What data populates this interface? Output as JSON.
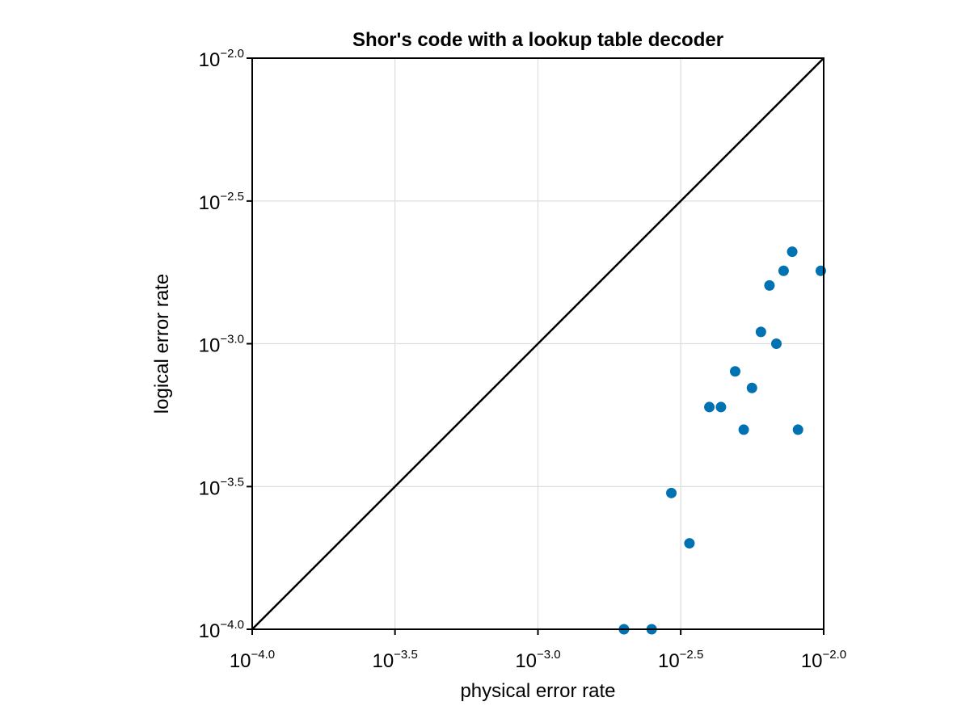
{
  "chart_data": {
    "type": "scatter",
    "title": "Shor's code with a lookup table decoder",
    "xlabel": "physical error rate",
    "ylabel": "logical error rate",
    "xscale": "log10",
    "yscale": "log10",
    "xlim": [
      0.0001,
      0.01
    ],
    "ylim": [
      0.0001,
      0.01
    ],
    "grid": true,
    "legend": "none",
    "tick_base": "10",
    "xticks": [
      {
        "value": 0.0001,
        "exponent": "−4.0"
      },
      {
        "value": 0.000316,
        "exponent": "−3.5"
      },
      {
        "value": 0.001,
        "exponent": "−3.0"
      },
      {
        "value": 0.00316,
        "exponent": "−2.5"
      },
      {
        "value": 0.01,
        "exponent": "−2.0"
      }
    ],
    "yticks": [
      {
        "value": 0.0001,
        "exponent": "−4.0"
      },
      {
        "value": 0.000316,
        "exponent": "−3.5"
      },
      {
        "value": 0.001,
        "exponent": "−3.0"
      },
      {
        "value": 0.00316,
        "exponent": "−2.5"
      },
      {
        "value": 0.01,
        "exponent": "−2.0"
      }
    ],
    "reference_line": {
      "x": [
        0.0001,
        0.01
      ],
      "y": [
        0.0001,
        0.01
      ],
      "color": "#000000"
    },
    "series": [
      {
        "color": "#0072b2",
        "points": [
          {
            "x": 0.002,
            "y": 0.0001
          },
          {
            "x": 0.0025,
            "y": 0.0001
          },
          {
            "x": 0.00293,
            "y": 0.0003
          },
          {
            "x": 0.00339,
            "y": 0.0002
          },
          {
            "x": 0.00398,
            "y": 0.0006
          },
          {
            "x": 0.00437,
            "y": 0.0006
          },
          {
            "x": 0.0049,
            "y": 0.0008
          },
          {
            "x": 0.00525,
            "y": 0.0005
          },
          {
            "x": 0.00561,
            "y": 0.0007
          },
          {
            "x": 0.00603,
            "y": 0.0011
          },
          {
            "x": 0.00646,
            "y": 0.0016
          },
          {
            "x": 0.00683,
            "y": 0.001
          },
          {
            "x": 0.00724,
            "y": 0.0018
          },
          {
            "x": 0.00776,
            "y": 0.0021
          },
          {
            "x": 0.00813,
            "y": 0.0005
          },
          {
            "x": 0.00977,
            "y": 0.0018
          }
        ]
      }
    ]
  }
}
